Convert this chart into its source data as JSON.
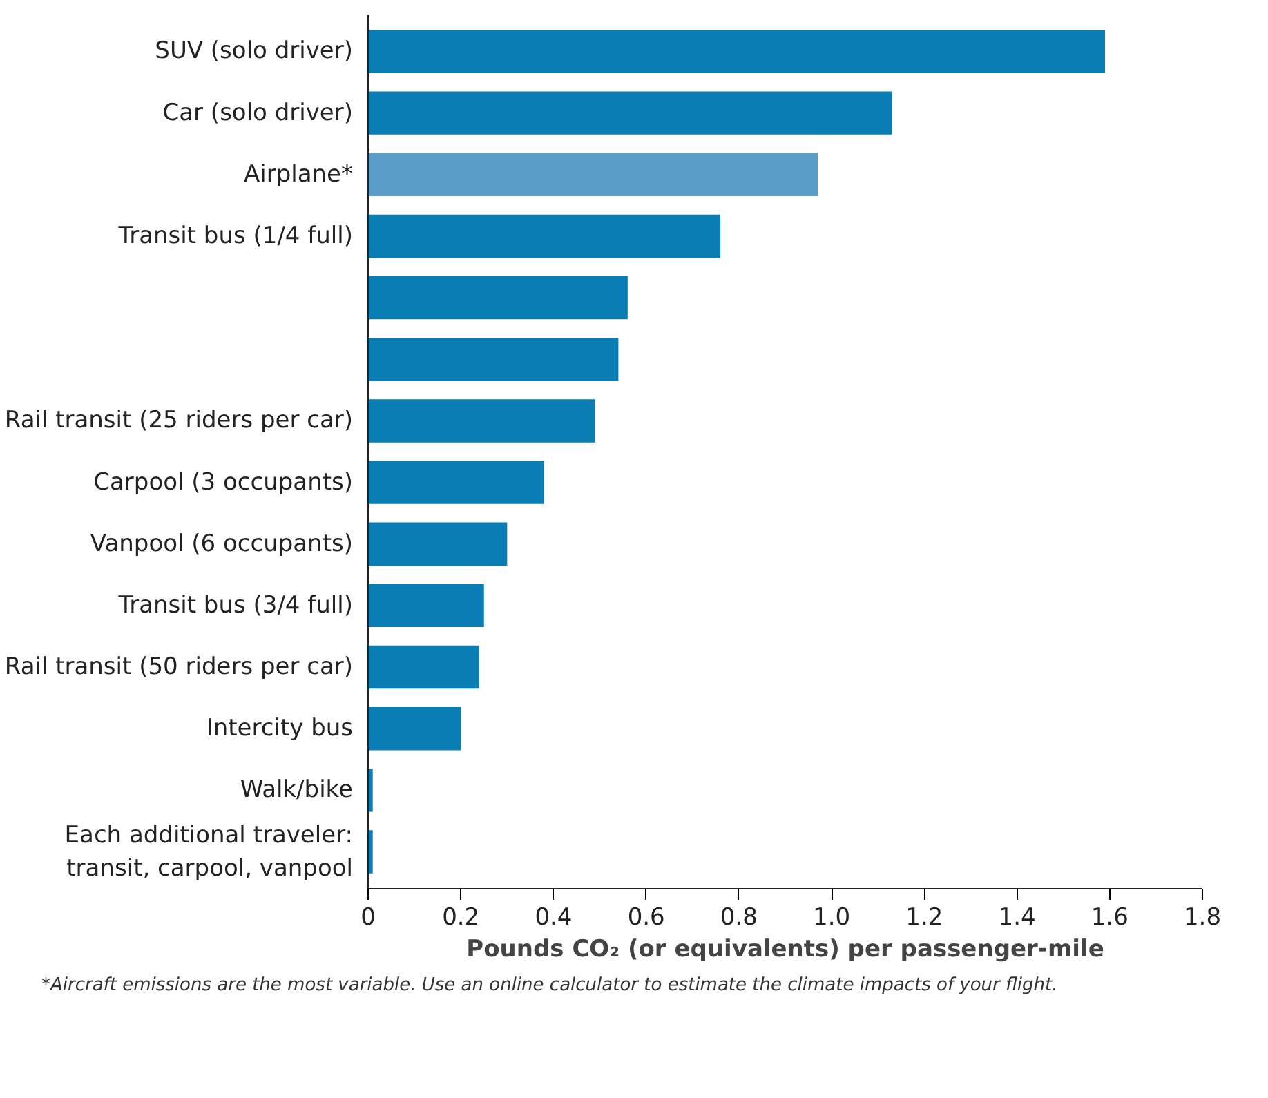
{
  "chart_data": {
    "type": "bar",
    "orientation": "horizontal",
    "categories": [
      "SUV (solo driver)",
      "Car (solo driver)",
      "Airplane*",
      "Transit bus (1/4 full)",
      null,
      null,
      "Rail transit (25 riders per car)",
      "Carpool (3 occupants)",
      "Vanpool (6 occupants)",
      "Transit bus (3/4 full)",
      "Rail transit (50 riders per car)",
      "Intercity bus",
      "Walk/bike",
      "Each additional traveler:\ntransit, carpool, vanpool"
    ],
    "values": [
      1.59,
      1.13,
      0.97,
      0.76,
      0.56,
      0.54,
      0.49,
      0.38,
      0.3,
      0.25,
      0.24,
      0.2,
      0.01,
      0.01
    ],
    "colors": [
      "#0a7db5",
      "#0a7db5",
      "#5a9cc8",
      "#0a7db5",
      "#0a7db5",
      "#0a7db5",
      "#0a7db5",
      "#0a7db5",
      "#0a7db5",
      "#0a7db5",
      "#0a7db5",
      "#0a7db5",
      "#0a7db5",
      "#0a7db5"
    ],
    "xlim": [
      0,
      1.8
    ],
    "xticks": [
      0,
      {
        "value": 0.2,
        "label": "0.2"
      },
      {
        "value": 0.4,
        "label": "0.4"
      },
      {
        "value": 0.6,
        "label": "0.6"
      },
      {
        "value": 0.8,
        "label": "0.8"
      },
      {
        "value": 1.0,
        "label": "1.0"
      },
      {
        "value": 1.2,
        "label": "1.2"
      },
      {
        "value": 1.4,
        "label": "1.4"
      },
      {
        "value": 1.6,
        "label": "1.6"
      },
      {
        "value": 1.8,
        "label": "1.8"
      }
    ],
    "xlabel": "Pounds CO₂ (or equivalents) per passenger-mile",
    "grid": false,
    "annotations": [
      "*Aircraft emissions are the most variable.  Use an online calculator to estimate the climate impacts of your flight."
    ]
  }
}
